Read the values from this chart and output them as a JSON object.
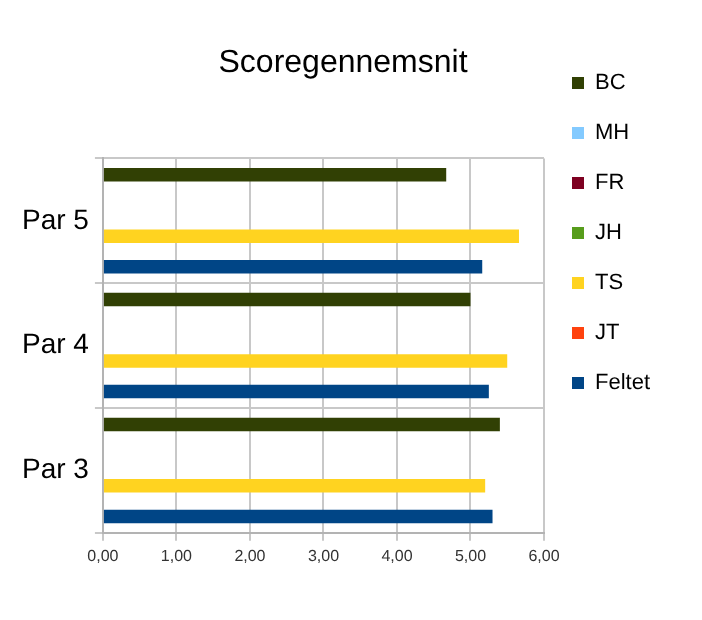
{
  "chart_data": {
    "type": "bar",
    "orientation": "horizontal",
    "title": "Scoregennemsnit",
    "categories": [
      "Par 5",
      "Par 4",
      "Par 3"
    ],
    "series": [
      {
        "name": "BC",
        "color": "#314004",
        "values": [
          4.67,
          5.0,
          5.4
        ]
      },
      {
        "name": "MH",
        "color": "#83caff",
        "values": [
          null,
          null,
          null
        ]
      },
      {
        "name": "FR",
        "color": "#7e0021",
        "values": [
          null,
          null,
          null
        ]
      },
      {
        "name": "JH",
        "color": "#579d1c",
        "values": [
          null,
          null,
          null
        ]
      },
      {
        "name": "TS",
        "color": "#ffd320",
        "values": [
          5.66,
          5.5,
          5.2
        ]
      },
      {
        "name": "JT",
        "color": "#ff420e",
        "values": [
          null,
          null,
          null
        ]
      },
      {
        "name": "Feltet",
        "color": "#004586",
        "values": [
          5.16,
          5.25,
          5.3
        ]
      }
    ],
    "xlim": [
      0,
      6
    ],
    "xticks": [
      {
        "value": 0,
        "label": "0,00"
      },
      {
        "value": 1,
        "label": "1,00"
      },
      {
        "value": 2,
        "label": "2,00"
      },
      {
        "value": 3,
        "label": "3,00"
      },
      {
        "value": 4,
        "label": "4,00"
      },
      {
        "value": 5,
        "label": "5,00"
      },
      {
        "value": 6,
        "label": "6,00"
      }
    ],
    "grid": true,
    "legend": "right"
  }
}
